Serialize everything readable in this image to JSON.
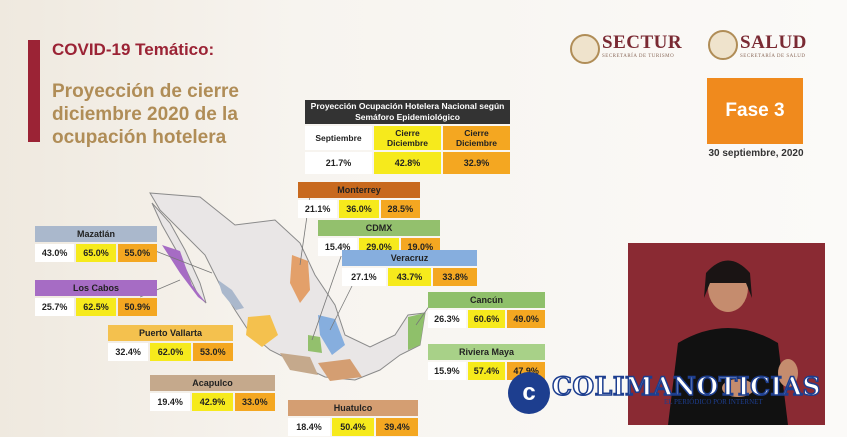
{
  "header": {
    "section": "COVID-19 Temático:",
    "title_lines": [
      "Proyección de cierre",
      "diciembre 2020 de la",
      "ocupación hotelera"
    ]
  },
  "logos": {
    "sectur": "SECTUR",
    "sectur_sub": "SECRETARÍA DE TURISMO",
    "salud": "SALUD",
    "salud_sub": "SECRETARÍA DE SALUD"
  },
  "phase": {
    "label": "Fase 3",
    "date": "30 septiembre, 2020"
  },
  "national": {
    "title": "Proyección Ocupación Hotelera Nacional según Semáforo Epidemiológico",
    "columns": [
      "Septiembre",
      "Cierre Diciembre",
      "Cierre Diciembre"
    ],
    "values": [
      "21.7%",
      "42.8%",
      "32.9%"
    ]
  },
  "destinations": [
    {
      "name": "Monterrey",
      "color": "#c8691e",
      "values": [
        "21.1%",
        "36.0%",
        "28.5%"
      ]
    },
    {
      "name": "CDMX",
      "color": "#93c06d",
      "values": [
        "15.4%",
        "29.0%",
        "19.0%"
      ]
    },
    {
      "name": "Veracruz",
      "color": "#86aede",
      "values": [
        "27.1%",
        "43.7%",
        "33.8%"
      ]
    },
    {
      "name": "Mazatlán",
      "color": "#aab8cc",
      "values": [
        "43.0%",
        "65.0%",
        "55.0%"
      ]
    },
    {
      "name": "Los Cabos",
      "color": "#a66cc4",
      "values": [
        "25.7%",
        "62.5%",
        "50.9%"
      ]
    },
    {
      "name": "Puerto Vallarta",
      "color": "#f4c14e",
      "values": [
        "32.4%",
        "62.0%",
        "53.0%"
      ]
    },
    {
      "name": "Acapulco",
      "color": "#c5a98c",
      "values": [
        "19.4%",
        "42.9%",
        "33.0%"
      ]
    },
    {
      "name": "Cancún",
      "color": "#8fc06a",
      "values": [
        "26.3%",
        "60.6%",
        "49.0%"
      ]
    },
    {
      "name": "Riviera Maya",
      "color": "#a8d188",
      "values": [
        "15.9%",
        "57.4%",
        "47.9%"
      ]
    },
    {
      "name": "Huatulco",
      "color": "#d49e72",
      "values": [
        "18.4%",
        "50.4%",
        "39.4%"
      ]
    }
  ],
  "watermark": {
    "brand": "COLIMANOTICIAS",
    "tagline": "EL PERIÓDICO POR INTERNET"
  }
}
